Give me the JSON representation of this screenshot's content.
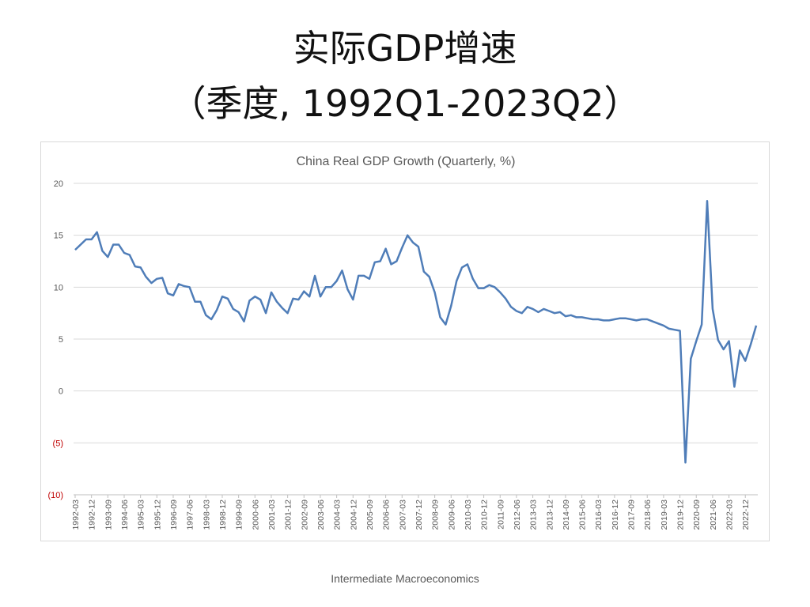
{
  "slide": {
    "title_line1": "实际GDP增速",
    "title_line2": "（季度, 1992Q1-2023Q2）",
    "footer": "Intermediate Macroeconomics"
  },
  "colors": {
    "line": "#4f7db8",
    "grid": "#d9d9d9",
    "negative_label": "#c00000",
    "text": "#595959"
  },
  "chart_data": {
    "type": "line",
    "title": "China Real GDP Growth (Quarterly, %)",
    "xlabel": "",
    "ylabel": "",
    "ylim": [
      -10,
      20
    ],
    "yticks": [
      20,
      15,
      10,
      5,
      0,
      -5,
      -10
    ],
    "ytick_labels": [
      "20",
      "15",
      "10",
      "5",
      "0",
      "(5)",
      "(10)"
    ],
    "grid": true,
    "legend": "none",
    "x_tick_labels": [
      "1992-03",
      "1992-12",
      "1993-09",
      "1994-06",
      "1995-03",
      "1995-12",
      "1996-09",
      "1997-06",
      "1998-03",
      "1998-12",
      "1999-09",
      "2000-06",
      "2001-03",
      "2001-12",
      "2002-09",
      "2003-06",
      "2004-03",
      "2004-12",
      "2005-09",
      "2006-06",
      "2007-03",
      "2007-12",
      "2008-09",
      "2009-06",
      "2010-03",
      "2010-12",
      "2011-09",
      "2012-06",
      "2013-03",
      "2013-12",
      "2014-09",
      "2015-06",
      "2016-03",
      "2016-12",
      "2017-09",
      "2018-06",
      "2019-03",
      "2019-12",
      "2020-09",
      "2021-06",
      "2022-03",
      "2022-12"
    ],
    "x": [
      "1992-03",
      "1992-06",
      "1992-09",
      "1992-12",
      "1993-03",
      "1993-06",
      "1993-09",
      "1993-12",
      "1994-03",
      "1994-06",
      "1994-09",
      "1994-12",
      "1995-03",
      "1995-06",
      "1995-09",
      "1995-12",
      "1996-03",
      "1996-06",
      "1996-09",
      "1996-12",
      "1997-03",
      "1997-06",
      "1997-09",
      "1997-12",
      "1998-03",
      "1998-06",
      "1998-09",
      "1998-12",
      "1999-03",
      "1999-06",
      "1999-09",
      "1999-12",
      "2000-03",
      "2000-06",
      "2000-09",
      "2000-12",
      "2001-03",
      "2001-06",
      "2001-09",
      "2001-12",
      "2002-03",
      "2002-06",
      "2002-09",
      "2002-12",
      "2003-03",
      "2003-06",
      "2003-09",
      "2003-12",
      "2004-03",
      "2004-06",
      "2004-09",
      "2004-12",
      "2005-03",
      "2005-06",
      "2005-09",
      "2005-12",
      "2006-03",
      "2006-06",
      "2006-09",
      "2006-12",
      "2007-03",
      "2007-06",
      "2007-09",
      "2007-12",
      "2008-03",
      "2008-06",
      "2008-09",
      "2008-12",
      "2009-03",
      "2009-06",
      "2009-09",
      "2009-12",
      "2010-03",
      "2010-06",
      "2010-09",
      "2010-12",
      "2011-03",
      "2011-06",
      "2011-09",
      "2011-12",
      "2012-03",
      "2012-06",
      "2012-09",
      "2012-12",
      "2013-03",
      "2013-06",
      "2013-09",
      "2013-12",
      "2014-03",
      "2014-06",
      "2014-09",
      "2014-12",
      "2015-03",
      "2015-06",
      "2015-09",
      "2015-12",
      "2016-03",
      "2016-06",
      "2016-09",
      "2016-12",
      "2017-03",
      "2017-06",
      "2017-09",
      "2017-12",
      "2018-03",
      "2018-06",
      "2018-09",
      "2018-12",
      "2019-03",
      "2019-06",
      "2019-09",
      "2019-12",
      "2020-03",
      "2020-06",
      "2020-09",
      "2020-12",
      "2021-03",
      "2021-06",
      "2021-09",
      "2021-12",
      "2022-03",
      "2022-06",
      "2022-09",
      "2022-12",
      "2023-03",
      "2023-06"
    ],
    "series": [
      {
        "values": [
          13.6,
          14.1,
          14.6,
          14.6,
          15.3,
          13.5,
          12.9,
          14.1,
          14.1,
          13.3,
          13.1,
          12.0,
          11.9,
          11.0,
          10.4,
          10.8,
          10.9,
          9.4,
          9.2,
          10.3,
          10.1,
          10.0,
          8.6,
          8.6,
          7.3,
          6.9,
          7.8,
          9.1,
          8.9,
          7.9,
          7.6,
          6.7,
          8.7,
          9.1,
          8.8,
          7.5,
          9.5,
          8.6,
          8.0,
          7.5,
          8.9,
          8.8,
          9.6,
          9.1,
          11.1,
          9.1,
          10.0,
          10.0,
          10.6,
          11.6,
          9.8,
          8.8,
          11.1,
          11.1,
          10.8,
          12.4,
          12.5,
          13.7,
          12.2,
          12.5,
          13.8,
          15.0,
          14.3,
          13.9,
          11.5,
          11.0,
          9.5,
          7.1,
          6.4,
          8.2,
          10.6,
          11.9,
          12.2,
          10.8,
          9.9,
          9.9,
          10.2,
          10.0,
          9.5,
          8.9,
          8.1,
          7.7,
          7.5,
          8.1,
          7.9,
          7.6,
          7.9,
          7.7,
          7.5,
          7.6,
          7.2,
          7.3,
          7.1,
          7.1,
          7.0,
          6.9,
          6.9,
          6.8,
          6.8,
          6.9,
          7.0,
          7.0,
          6.9,
          6.8,
          6.9,
          6.9,
          6.7,
          6.5,
          6.3,
          6.0,
          5.9,
          5.8,
          -6.9,
          3.1,
          4.8,
          6.4,
          18.3,
          7.9,
          4.9,
          4.0,
          4.8,
          0.4,
          3.9,
          2.9,
          4.5,
          6.3
        ]
      }
    ]
  }
}
